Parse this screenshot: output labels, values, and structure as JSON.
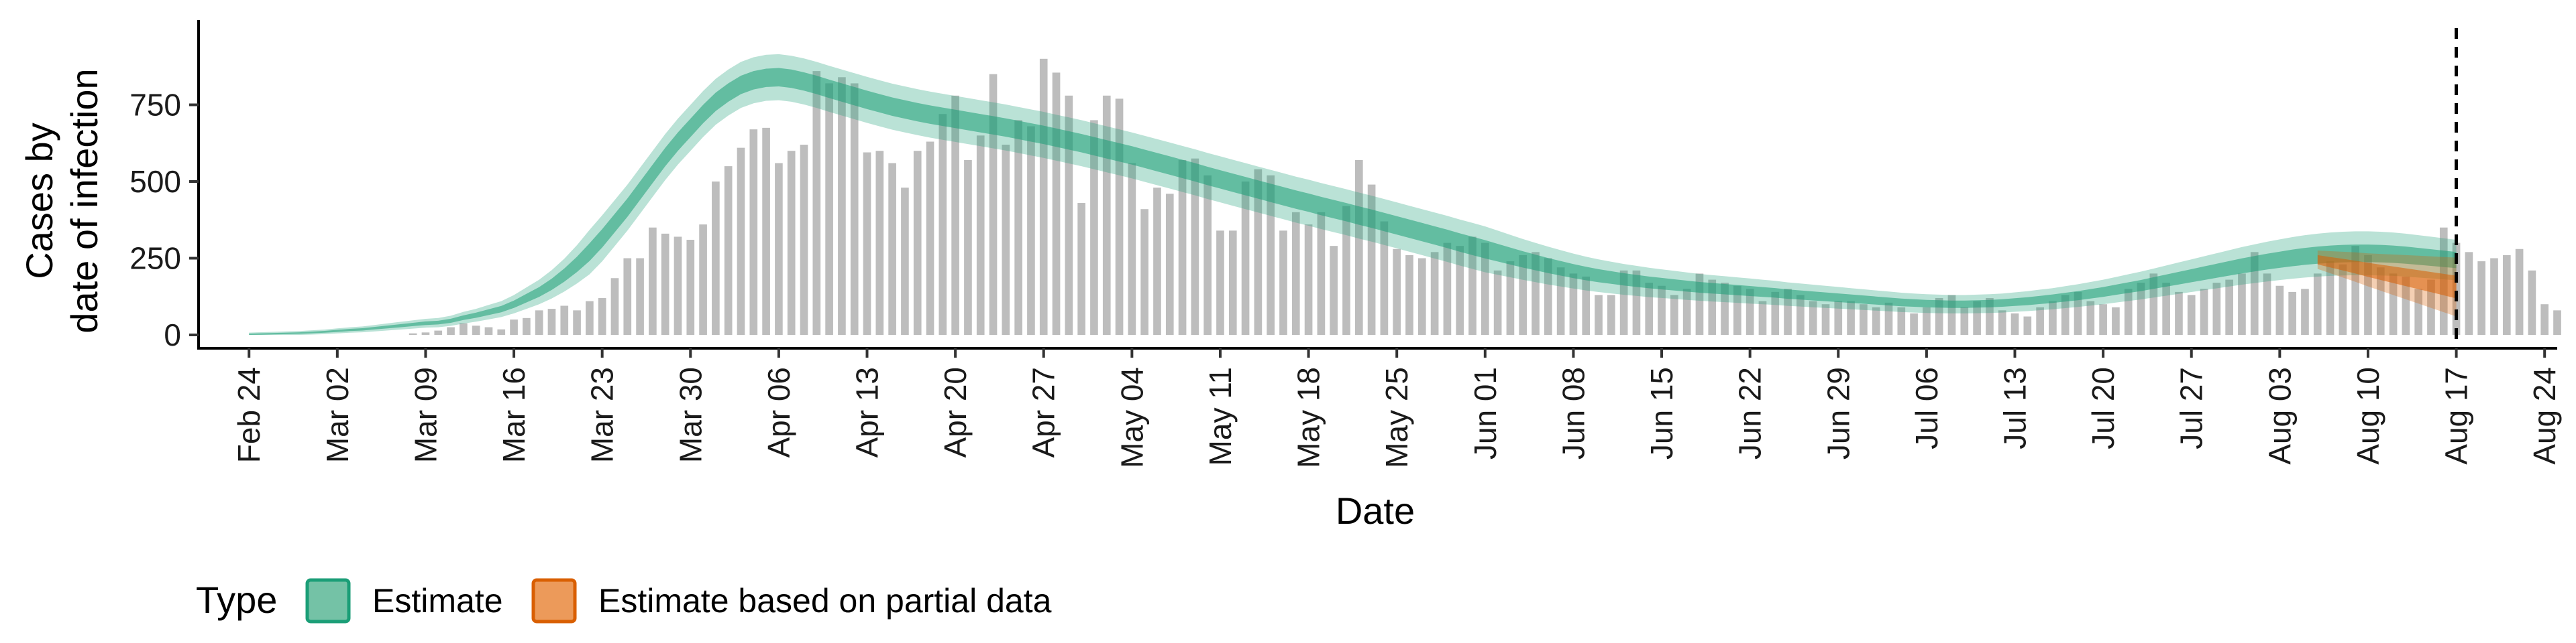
{
  "chart_data": {
    "type": "bar",
    "ylabel_lines": [
      "Cases by",
      "date of infection"
    ],
    "xlabel": "Date",
    "ylim": [
      0,
      1000
    ],
    "y_ticks": [
      0,
      250,
      500,
      750
    ],
    "x_range": [
      "2020-02-20",
      "2020-08-25"
    ],
    "x_ticks": [
      {
        "date": "2020-02-24",
        "label": "Feb 24"
      },
      {
        "date": "2020-03-02",
        "label": "Mar 02"
      },
      {
        "date": "2020-03-09",
        "label": "Mar 09"
      },
      {
        "date": "2020-03-16",
        "label": "Mar 16"
      },
      {
        "date": "2020-03-23",
        "label": "Mar 23"
      },
      {
        "date": "2020-03-30",
        "label": "Mar 30"
      },
      {
        "date": "2020-04-06",
        "label": "Apr 06"
      },
      {
        "date": "2020-04-13",
        "label": "Apr 13"
      },
      {
        "date": "2020-04-20",
        "label": "Apr 20"
      },
      {
        "date": "2020-04-27",
        "label": "Apr 27"
      },
      {
        "date": "2020-05-04",
        "label": "May 04"
      },
      {
        "date": "2020-05-11",
        "label": "May 11"
      },
      {
        "date": "2020-05-18",
        "label": "May 18"
      },
      {
        "date": "2020-05-25",
        "label": "May 25"
      },
      {
        "date": "2020-06-01",
        "label": "Jun 01"
      },
      {
        "date": "2020-06-08",
        "label": "Jun 08"
      },
      {
        "date": "2020-06-15",
        "label": "Jun 15"
      },
      {
        "date": "2020-06-22",
        "label": "Jun 22"
      },
      {
        "date": "2020-06-29",
        "label": "Jun 29"
      },
      {
        "date": "2020-07-06",
        "label": "Jul 06"
      },
      {
        "date": "2020-07-13",
        "label": "Jul 13"
      },
      {
        "date": "2020-07-20",
        "label": "Jul 20"
      },
      {
        "date": "2020-07-27",
        "label": "Jul 27"
      },
      {
        "date": "2020-08-03",
        "label": "Aug 03"
      },
      {
        "date": "2020-08-10",
        "label": "Aug 10"
      },
      {
        "date": "2020-08-17",
        "label": "Aug 17"
      },
      {
        "date": "2020-08-24",
        "label": "Aug 24"
      }
    ],
    "vline_date": "2020-08-17",
    "bars_start_date": "2020-03-08",
    "bar_values": [
      5,
      8,
      14,
      25,
      38,
      30,
      25,
      18,
      50,
      55,
      80,
      85,
      95,
      80,
      110,
      120,
      185,
      250,
      250,
      350,
      330,
      320,
      310,
      360,
      500,
      550,
      610,
      670,
      675,
      560,
      600,
      620,
      860,
      820,
      840,
      820,
      595,
      600,
      560,
      480,
      600,
      630,
      720,
      780,
      570,
      650,
      850,
      620,
      700,
      680,
      900,
      855,
      780,
      430,
      700,
      780,
      770,
      560,
      410,
      480,
      460,
      570,
      575,
      520,
      340,
      340,
      500,
      540,
      520,
      340,
      400,
      360,
      400,
      290,
      420,
      570,
      490,
      370,
      280,
      260,
      250,
      270,
      300,
      290,
      320,
      300,
      210,
      240,
      260,
      270,
      250,
      220,
      200,
      190,
      130,
      130,
      210,
      210,
      170,
      160,
      130,
      150,
      200,
      180,
      170,
      160,
      150,
      110,
      140,
      150,
      130,
      110,
      100,
      110,
      110,
      100,
      90,
      105,
      90,
      70,
      90,
      120,
      130,
      90,
      110,
      120,
      80,
      70,
      60,
      90,
      110,
      130,
      140,
      110,
      100,
      90,
      150,
      170,
      200,
      170,
      140,
      130,
      150,
      170,
      180,
      200,
      270,
      200,
      160,
      140,
      150,
      200,
      240,
      230,
      290,
      260,
      220,
      200,
      190,
      150,
      180,
      350,
      300,
      270,
      240,
      250,
      260,
      280,
      210,
      100,
      80
    ],
    "estimate_start_date": "2020-02-24",
    "estimate_median": [
      2,
      3,
      4,
      5,
      6,
      8,
      10,
      13,
      16,
      18,
      22,
      26,
      30,
      34,
      38,
      40,
      46,
      56,
      64,
      74,
      84,
      100,
      120,
      140,
      165,
      195,
      230,
      270,
      315,
      365,
      415,
      470,
      525,
      580,
      630,
      675,
      720,
      760,
      790,
      815,
      830,
      838,
      840,
      835,
      826,
      815,
      802,
      790,
      778,
      766,
      755,
      744,
      735,
      726,
      718,
      711,
      704,
      697,
      690,
      683,
      676,
      668,
      660,
      652,
      643,
      634,
      625,
      615,
      605,
      595,
      585,
      574,
      563,
      552,
      541,
      530,
      518,
      507,
      496,
      485,
      474,
      463,
      452,
      441,
      431,
      420,
      410,
      400,
      389,
      379,
      368,
      357,
      346,
      335,
      324,
      313,
      301,
      290,
      279,
      268,
      257,
      246,
      236,
      226,
      217,
      208,
      200,
      193,
      187,
      181,
      176,
      171,
      167,
      163,
      159,
      155,
      152,
      149,
      146,
      143,
      140,
      137,
      133,
      130,
      127,
      124,
      121,
      118,
      115,
      112,
      109,
      106,
      104,
      102,
      101,
      100,
      100,
      101,
      102,
      104,
      107,
      110,
      114,
      118,
      123,
      128,
      134,
      140,
      147,
      154,
      161,
      169,
      177,
      185,
      193,
      201,
      209,
      217,
      225,
      232,
      239,
      245,
      251,
      256,
      260,
      263,
      265,
      266,
      266,
      265,
      263,
      260,
      256,
      252,
      248,
      244
    ],
    "estimate_inner_halfwidth": 30,
    "estimate_outer_halfwidth": 75,
    "partial_start_date": "2020-08-06",
    "partial_median": [
      245,
      237,
      229,
      221,
      212,
      204,
      196,
      188,
      180,
      172,
      164,
      156
    ],
    "partial_inner_halfwidth": [
      15,
      17,
      19,
      21,
      23,
      25,
      27,
      29,
      31,
      33,
      35,
      37
    ],
    "partial_outer_halfwidth": [
      30,
      36,
      42,
      48,
      54,
      60,
      66,
      72,
      78,
      84,
      90,
      96
    ],
    "colors": {
      "bar": "#bdbdbd",
      "estimate": "#1b9e77",
      "partial": "#d95f02",
      "axis": "#000000"
    },
    "legend": {
      "title": "Type",
      "position": "bottom",
      "items": [
        {
          "label": "Estimate",
          "fill": "#74c2a6",
          "stroke": "#1b9e77"
        },
        {
          "label": "Estimate based on partial data",
          "fill": "#ec9a5a",
          "stroke": "#d95f02"
        }
      ]
    }
  }
}
